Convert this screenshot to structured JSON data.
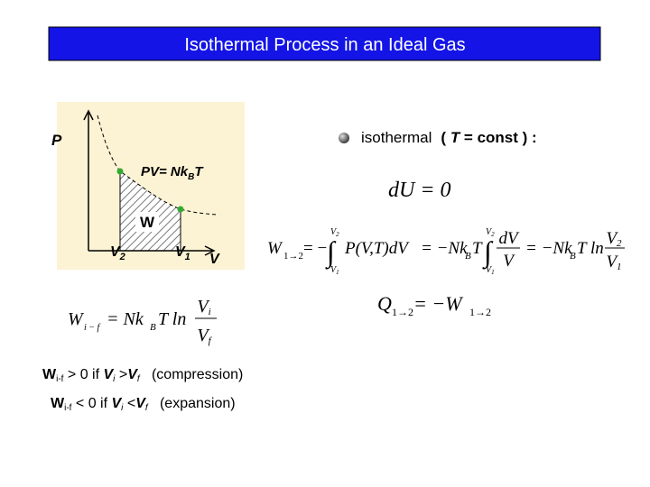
{
  "title": "Isothermal Process in an Ideal Gas",
  "diagram": {
    "p_label": "P",
    "v_label": "V",
    "state_equation": [
      "PV= Nk",
      "B",
      "T"
    ],
    "work_label": "W",
    "v2": [
      "V",
      "2"
    ],
    "v1": [
      "V",
      "1"
    ]
  },
  "bullet": {
    "text": "isothermal",
    "condition": [
      "( ",
      "T",
      " = const ) :"
    ]
  },
  "equations": {
    "du": "dU = 0",
    "work": {
      "lhs": "W",
      "lhs_sub": "1→2",
      "eq1": "= −",
      "integral": "∫",
      "upper": [
        "V",
        "2"
      ],
      "lower": [
        "V",
        "1"
      ],
      "integrand": "P(V,T)dV",
      "eq2": "= −Nk",
      "k_sub": "B",
      "t": "T",
      "integral2": "∫",
      "upper2": [
        "V",
        "2"
      ],
      "lower2": [
        "V",
        "1"
      ],
      "frac_num": "dV",
      "frac_den": "V",
      "eq3": "= −Nk",
      "k_sub2": "B",
      "t2": "T ln",
      "ln_num": [
        "V",
        "2"
      ],
      "ln_den": [
        "V",
        "1"
      ]
    },
    "heat": {
      "lhs": "Q",
      "lhs_sub": "1→2",
      "eq": "= −W",
      "rhs_sub": "1→2"
    },
    "wif": {
      "lhs": "W",
      "lhs_sub": "i − f",
      "eq": "= Nk",
      "k_sub": "B",
      "t": "T ln",
      "num": [
        "V",
        "i"
      ],
      "den": [
        "V",
        "f"
      ]
    }
  },
  "notes": [
    [
      "W",
      "i-f",
      " > 0 if ",
      "V",
      "i",
      " >",
      "V",
      "f",
      "   (compression)"
    ],
    [
      "W",
      "i-f",
      " < 0 if ",
      "V",
      "i",
      " <",
      "V",
      "f",
      "   (expansion)"
    ]
  ]
}
